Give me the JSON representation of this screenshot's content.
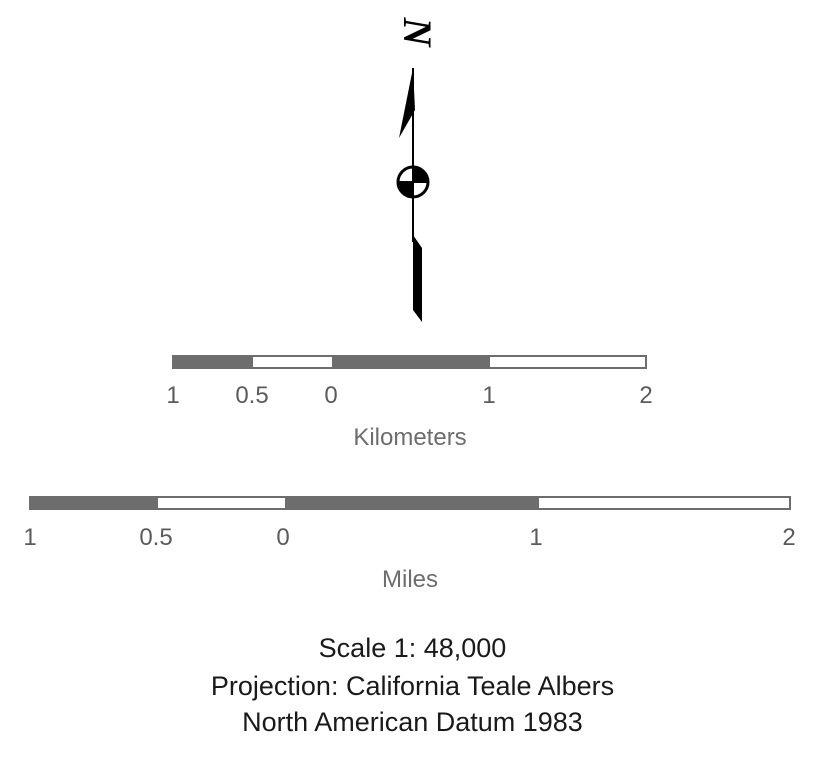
{
  "north_arrow": {
    "label": "N",
    "icon": "north-arrow-icon"
  },
  "km_scale": {
    "ticks": [
      "1",
      "0.5",
      "0",
      "1",
      "2"
    ],
    "unit": "Kilometers"
  },
  "mi_scale": {
    "ticks": [
      "1",
      "0.5",
      "0",
      "1",
      "2"
    ],
    "unit": "Miles"
  },
  "info": {
    "scale": "Scale 1: 48,000",
    "projection": "Projection: California Teale Albers",
    "datum": "North American Datum 1983"
  },
  "colors": {
    "bar_dark": "#6d6d6d",
    "bar_light": "#ffffff",
    "text": "#1a1a1a"
  }
}
